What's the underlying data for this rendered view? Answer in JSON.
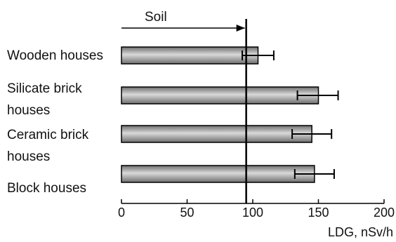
{
  "chart_data": {
    "type": "bar",
    "orientation": "horizontal",
    "categories": [
      [
        "Wooden houses"
      ],
      [
        "Silicate brick",
        "houses"
      ],
      [
        "Ceramic brick",
        "houses"
      ],
      [
        "Block houses"
      ]
    ],
    "values": [
      104,
      150,
      145,
      147
    ],
    "error_low": [
      92,
      134,
      130,
      132
    ],
    "error_high": [
      116,
      165,
      160,
      162
    ],
    "reference": {
      "label": "Soil",
      "value": 95
    },
    "xlabel": "LDG, nSv/h",
    "xlim": [
      0,
      200
    ],
    "xticks": [
      0,
      50,
      100,
      150,
      200
    ],
    "grid": false,
    "legend": "none",
    "colors": {
      "bar_light": "#d9d9d9",
      "bar_dark": "#6e6e6e",
      "bar_edge": "#000000",
      "axis": "#000000"
    }
  }
}
